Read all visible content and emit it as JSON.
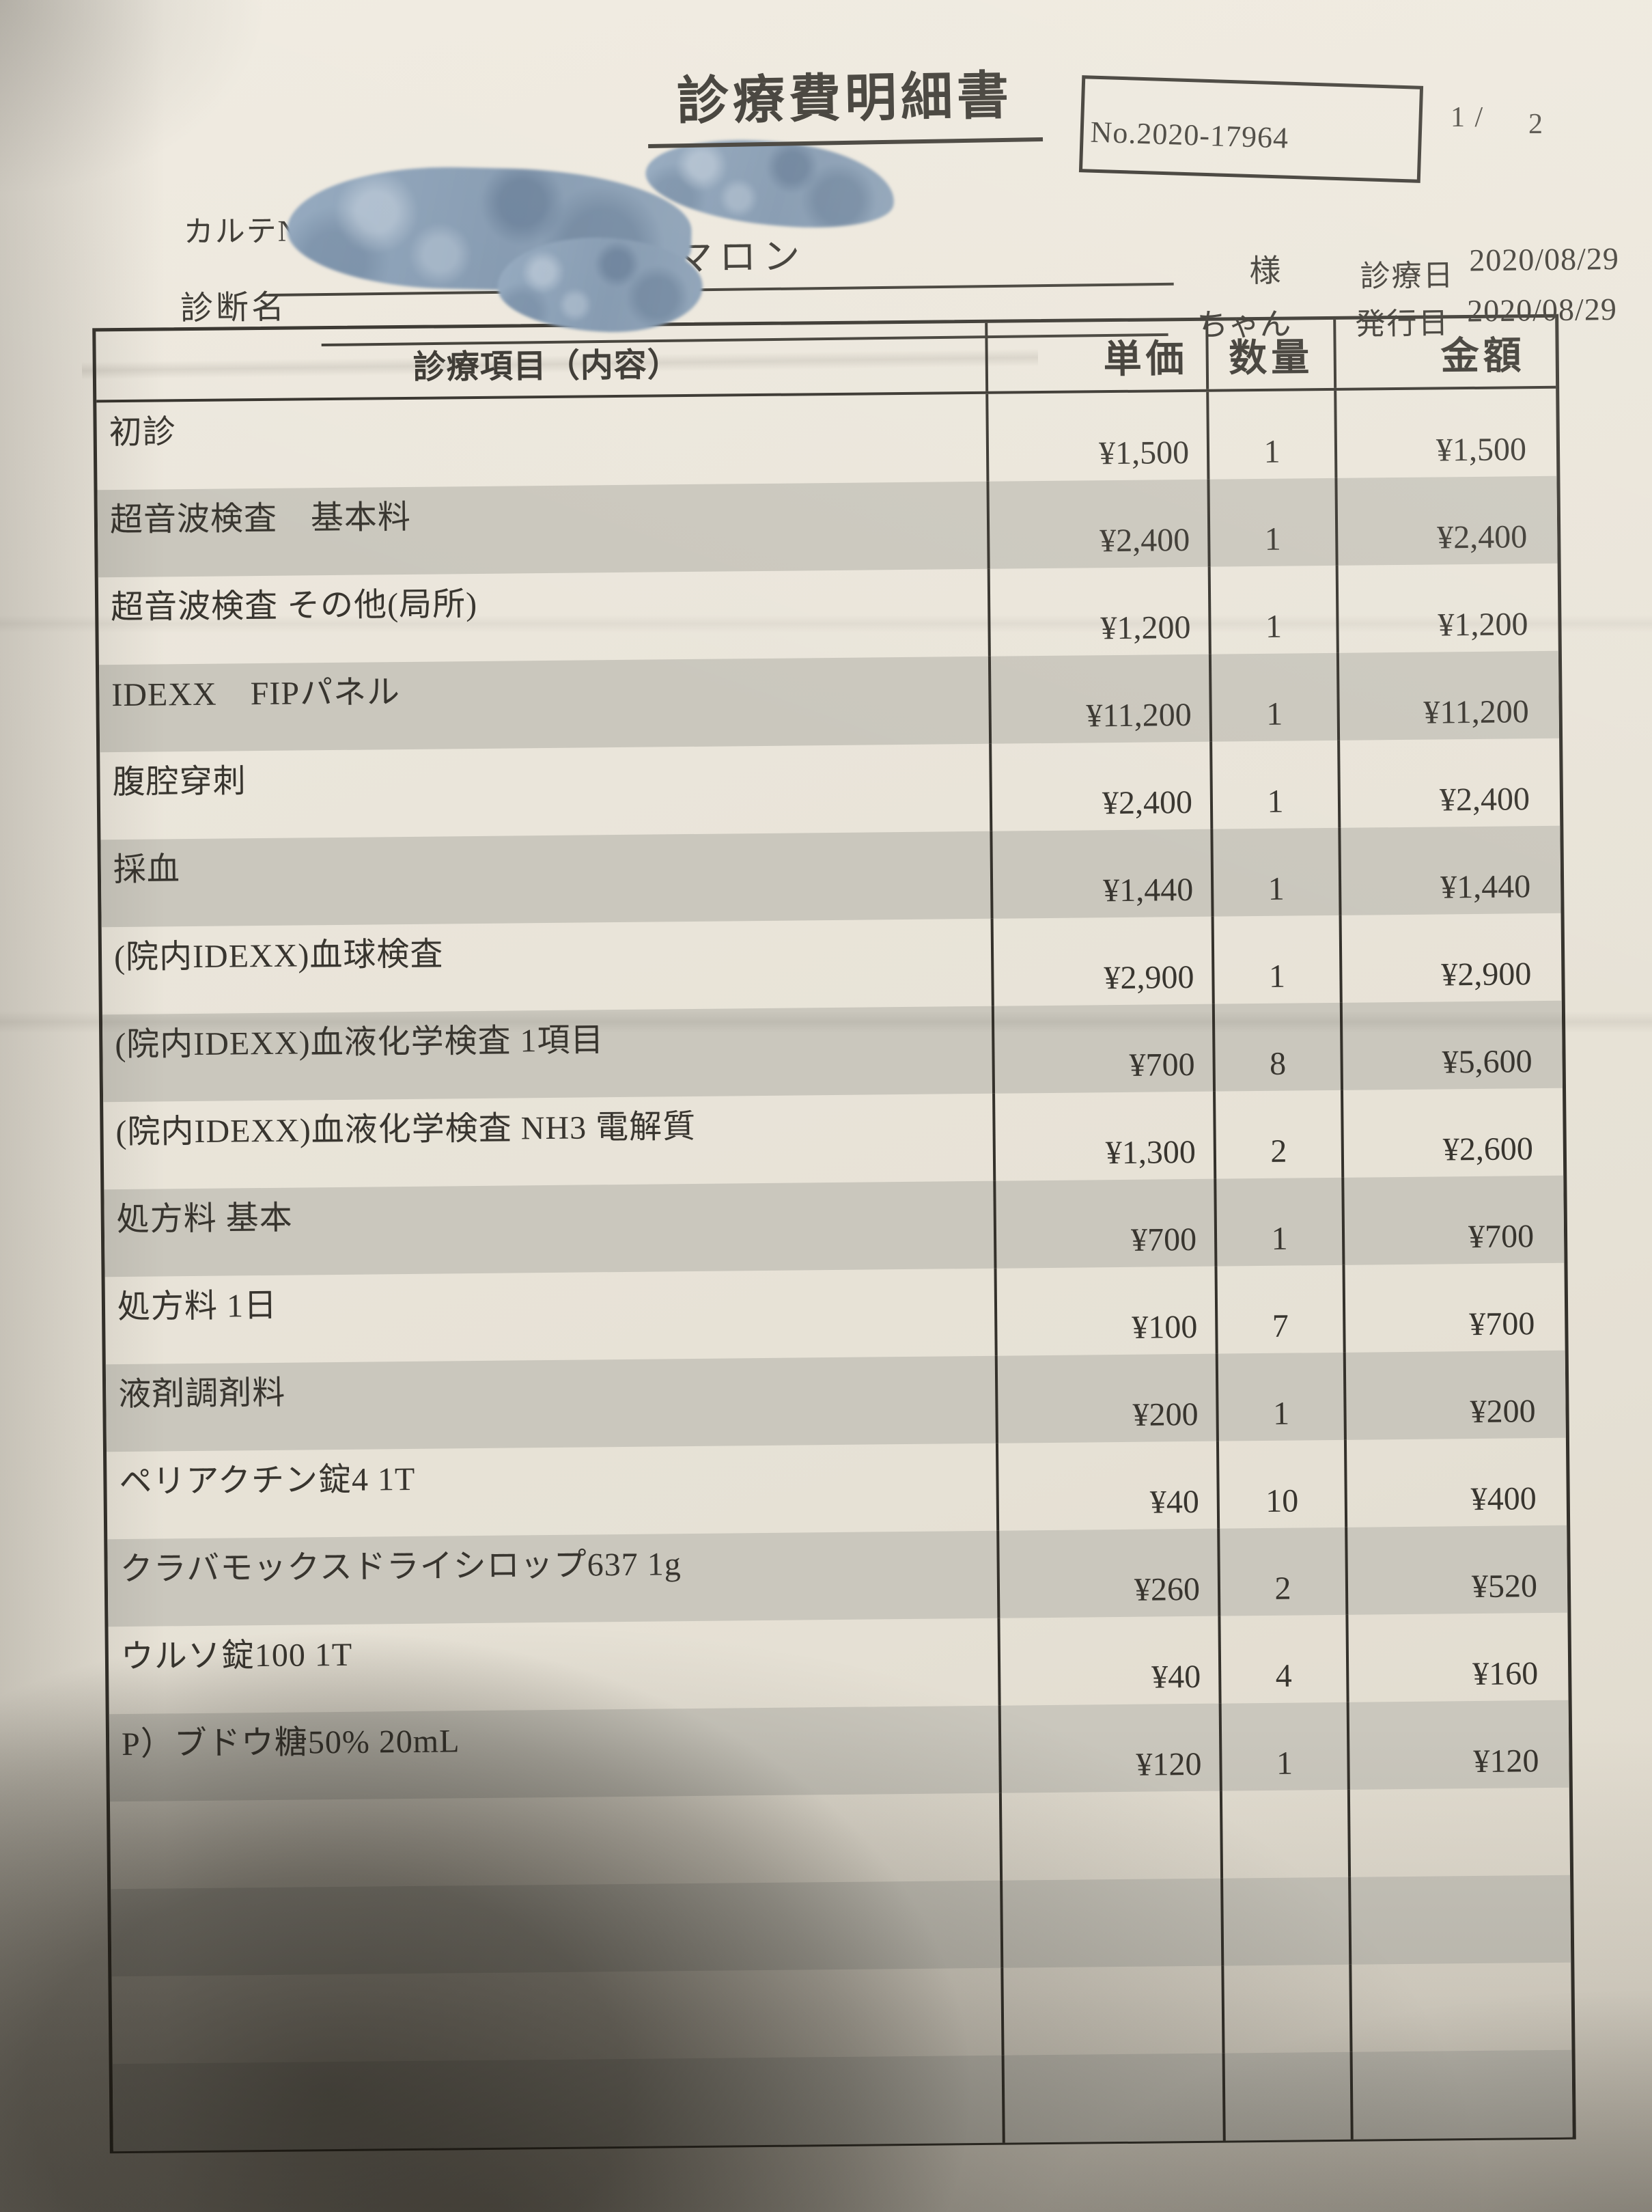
{
  "document": {
    "title": "診療費明細書",
    "doc_no": "No.2020-17964",
    "page_current": "1 /",
    "page_total": "2"
  },
  "patient": {
    "karte_label": "カルテNo",
    "diagnosis_label": "診断名",
    "pet_name": "マロン",
    "honorific_after_name": "様",
    "honorific_after_diagnosis": "ちゃん",
    "visit_date_label": "診療日",
    "visit_date": "2020/08/29",
    "issue_date_label": "発行日",
    "issue_date": "2020/08/29",
    "redactions": [
      "karte-number",
      "owner-name"
    ]
  },
  "table": {
    "headers": {
      "item": "診療項目（内容）",
      "unit_price": "単価",
      "quantity": "数量",
      "amount": "金額"
    },
    "rows": [
      {
        "item": "初診",
        "unit_price": "¥1,500",
        "quantity": "1",
        "amount": "¥1,500"
      },
      {
        "item": "超音波検査　基本料",
        "unit_price": "¥2,400",
        "quantity": "1",
        "amount": "¥2,400"
      },
      {
        "item": "超音波検査 その他(局所)",
        "unit_price": "¥1,200",
        "quantity": "1",
        "amount": "¥1,200"
      },
      {
        "item": "IDEXX　FIPパネル",
        "unit_price": "¥11,200",
        "quantity": "1",
        "amount": "¥11,200"
      },
      {
        "item": "腹腔穿刺",
        "unit_price": "¥2,400",
        "quantity": "1",
        "amount": "¥2,400"
      },
      {
        "item": "採血",
        "unit_price": "¥1,440",
        "quantity": "1",
        "amount": "¥1,440"
      },
      {
        "item": "(院内IDEXX)血球検査",
        "unit_price": "¥2,900",
        "quantity": "1",
        "amount": "¥2,900"
      },
      {
        "item": "(院内IDEXX)血液化学検査 1項目",
        "unit_price": "¥700",
        "quantity": "8",
        "amount": "¥5,600"
      },
      {
        "item": "(院内IDEXX)血液化学検査 NH3 電解質",
        "unit_price": "¥1,300",
        "quantity": "2",
        "amount": "¥2,600"
      },
      {
        "item": "処方料 基本",
        "unit_price": "¥700",
        "quantity": "1",
        "amount": "¥700"
      },
      {
        "item": "処方料 1日",
        "unit_price": "¥100",
        "quantity": "7",
        "amount": "¥700"
      },
      {
        "item": "液剤調剤料",
        "unit_price": "¥200",
        "quantity": "1",
        "amount": "¥200"
      },
      {
        "item": "ペリアクチン錠4 1T",
        "unit_price": "¥40",
        "quantity": "10",
        "amount": "¥400"
      },
      {
        "item": "クラバモックスドライシロップ637 1g",
        "unit_price": "¥260",
        "quantity": "2",
        "amount": "¥520"
      },
      {
        "item": "ウルソ錠100 1T",
        "unit_price": "¥40",
        "quantity": "4",
        "amount": "¥160"
      },
      {
        "item": "P）ブドウ糖50% 20mL",
        "unit_price": "¥120",
        "quantity": "1",
        "amount": "¥120"
      }
    ],
    "empty_rows": 4
  },
  "colors": {
    "paper": "#eae5da",
    "stripe": "#cac7bd",
    "ink": "#38352f",
    "border": "#34312b",
    "marker_blue": "#8ba1b8",
    "shadow": "#16130d"
  }
}
